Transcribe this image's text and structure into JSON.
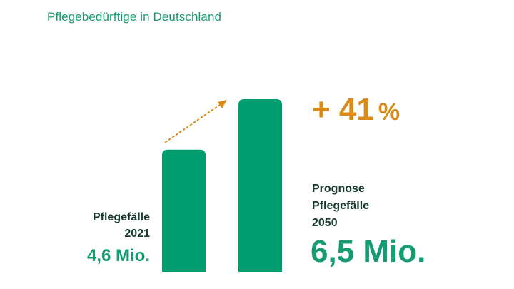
{
  "title": "Pflegebedürftige in Deutschland",
  "colors": {
    "bar": "#009d6e",
    "accent": "#d98a17",
    "text": "#1a3b33"
  },
  "left": {
    "label_line1": "Pflegefälle",
    "label_line2": "2021",
    "value": "4,6 Mio."
  },
  "right": {
    "label_line1": "Prognose",
    "label_line2": "Pflegefälle",
    "label_line3": "2050",
    "value": "6,5 Mio."
  },
  "change": {
    "text": "+ 41",
    "unit": "%"
  },
  "chart_data": {
    "type": "bar",
    "categories": [
      "2021",
      "2050"
    ],
    "values": [
      4.6,
      6.5
    ],
    "unit": "Mio.",
    "title": "Pflegebedürftige in Deutschland",
    "annotations": [
      "+ 41 %"
    ],
    "grid": false
  }
}
